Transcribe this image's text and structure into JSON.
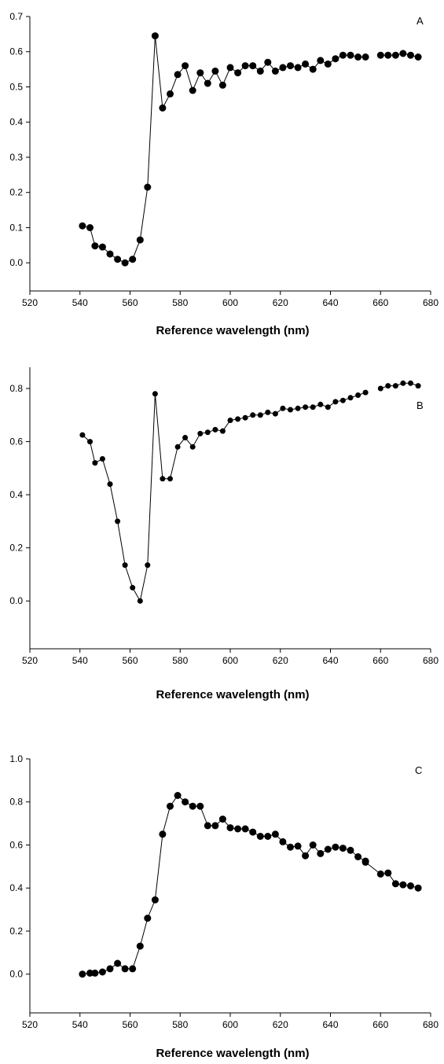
{
  "chart_data": [
    {
      "type": "scatter",
      "panel_label": "A",
      "xlabel": "Reference wavelength (nm)",
      "ylabel": "",
      "xlim": [
        520,
        680
      ],
      "ylim": [
        -0.08,
        0.7
      ],
      "x_ticks": [
        520,
        540,
        560,
        580,
        600,
        620,
        640,
        660,
        680
      ],
      "y_ticks": [
        0.0,
        0.1,
        0.2,
        0.3,
        0.4,
        0.5,
        0.6,
        0.7
      ],
      "y_tick_labels": [
        "0.0",
        "0.1",
        "0.2",
        "0.3",
        "0.4",
        "0.5",
        "0.6",
        "0.7"
      ],
      "grid": false,
      "marker_color": "#000000",
      "series": [
        {
          "x": [
            541,
            544,
            546,
            549,
            552,
            555,
            558,
            561,
            564,
            567,
            570,
            573,
            576,
            579,
            582,
            585,
            588,
            591,
            594,
            597,
            600,
            603,
            606,
            609,
            612,
            615,
            618,
            621,
            624,
            627,
            630,
            633,
            636,
            639,
            642,
            645,
            648,
            651,
            654
          ],
          "y": [
            0.105,
            0.1,
            0.048,
            0.045,
            0.025,
            0.01,
            0.0,
            0.01,
            0.065,
            0.215,
            0.645,
            0.44,
            0.48,
            0.535,
            0.56,
            0.49,
            0.54,
            0.51,
            0.545,
            0.505,
            0.555,
            0.54,
            0.56,
            0.56,
            0.545,
            0.57,
            0.545,
            0.555,
            0.56,
            0.555,
            0.565,
            0.55,
            0.575,
            0.565,
            0.58,
            0.59,
            0.59,
            0.585,
            0.585
          ]
        },
        {
          "x": [
            660,
            663,
            666,
            669,
            672,
            675
          ],
          "y": [
            0.59,
            0.59,
            0.59,
            0.595,
            0.59,
            0.585
          ]
        }
      ]
    },
    {
      "type": "line",
      "panel_label": "B",
      "xlabel": "Reference wavelength (nm)",
      "ylabel": "",
      "xlim": [
        520,
        680
      ],
      "ylim": [
        -0.18,
        0.88
      ],
      "x_ticks": [
        520,
        540,
        560,
        580,
        600,
        620,
        640,
        660,
        680
      ],
      "y_ticks": [
        0.0,
        0.2,
        0.4,
        0.6,
        0.8
      ],
      "y_tick_labels": [
        "0.0",
        "0.2",
        "0.4",
        "0.6",
        "0.8"
      ],
      "grid": false,
      "marker_color": "#000000",
      "series": [
        {
          "x": [
            541,
            544,
            546,
            549,
            552,
            555,
            558,
            561,
            564,
            567,
            570,
            573,
            576,
            579,
            582,
            585,
            588,
            591,
            594,
            597,
            600,
            603,
            606,
            609,
            612,
            615,
            618,
            621,
            624,
            627,
            630,
            633,
            636,
            639,
            642,
            645,
            648,
            651,
            654
          ],
          "y": [
            0.625,
            0.6,
            0.52,
            0.535,
            0.44,
            0.3,
            0.135,
            0.05,
            0.0,
            0.135,
            0.78,
            0.46,
            0.46,
            0.58,
            0.615,
            0.58,
            0.63,
            0.635,
            0.645,
            0.64,
            0.68,
            0.685,
            0.69,
            0.7,
            0.7,
            0.71,
            0.705,
            0.725,
            0.72,
            0.725,
            0.73,
            0.73,
            0.74,
            0.73,
            0.75,
            0.755,
            0.765,
            0.775,
            0.785
          ]
        },
        {
          "x": [
            660,
            663,
            666,
            669,
            672,
            675
          ],
          "y": [
            0.8,
            0.81,
            0.81,
            0.82,
            0.82,
            0.81
          ]
        }
      ]
    },
    {
      "type": "scatter",
      "panel_label": "C",
      "xlabel": "Reference wavelength (nm)",
      "ylabel": "",
      "xlim": [
        520,
        680
      ],
      "ylim": [
        -0.18,
        1.0
      ],
      "x_ticks": [
        520,
        540,
        560,
        580,
        600,
        620,
        640,
        660,
        680
      ],
      "y_ticks": [
        0.0,
        0.2,
        0.4,
        0.6,
        0.8,
        1.0
      ],
      "y_tick_labels": [
        "0.0",
        "0.2",
        "0.4",
        "0.6",
        "0.8",
        "1.0"
      ],
      "grid": false,
      "marker_color": "#000000",
      "series": [
        {
          "x": [
            541,
            544,
            546,
            549,
            552,
            555,
            558,
            561,
            564,
            567,
            570,
            573,
            576,
            579,
            582,
            585,
            588,
            591,
            594,
            597,
            600,
            603,
            606,
            609,
            612,
            615,
            618,
            621,
            624,
            627,
            630,
            633,
            636,
            639,
            642,
            645,
            648,
            651,
            654
          ],
          "y": [
            0.0,
            0.005,
            0.005,
            0.01,
            0.025,
            0.05,
            0.025,
            0.025,
            0.13,
            0.26,
            0.345,
            0.65,
            0.78,
            0.83,
            0.8,
            0.78,
            0.78,
            0.69,
            0.69,
            0.72,
            0.68,
            0.675,
            0.675,
            0.66,
            0.64,
            0.64,
            0.65,
            0.615,
            0.59,
            0.595,
            0.55,
            0.6,
            0.56,
            0.58,
            0.59,
            0.585,
            0.575,
            0.545,
            0.525
          ]
        },
        {
          "x": [
            654,
            660,
            663,
            666,
            669,
            672,
            675
          ],
          "y": [
            0.52,
            0.465,
            0.47,
            0.42,
            0.415,
            0.41,
            0.4
          ]
        }
      ]
    }
  ]
}
